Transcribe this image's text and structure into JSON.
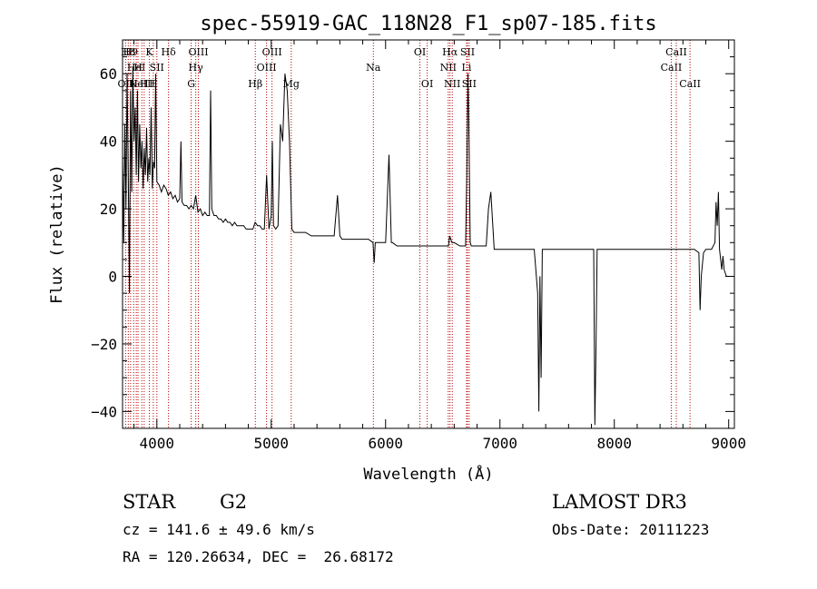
{
  "chart_data": {
    "type": "line",
    "title": "spec-55919-GAC_118N28_F1_sp07-185.fits",
    "xlabel": "Wavelength (Å)",
    "ylabel": "Flux (relative)",
    "xlim": [
      3700,
      9050
    ],
    "ylim": [
      -45,
      70
    ],
    "xticks": [
      4000,
      5000,
      6000,
      7000,
      8000,
      9000
    ],
    "yticks": [
      -40,
      -20,
      0,
      20,
      40,
      60
    ],
    "xtick_labels": [
      "4000",
      "5000",
      "6000",
      "7000",
      "8000",
      "9000"
    ],
    "ytick_labels": [
      "−40",
      "−20",
      "0",
      "20",
      "40",
      "60"
    ],
    "grid": false,
    "series": [
      {
        "values_description": "spectrum",
        "x": [
          3700,
          3710,
          3720,
          3730,
          3740,
          3750,
          3760,
          3770,
          3780,
          3790,
          3800,
          3810,
          3820,
          3830,
          3840,
          3850,
          3860,
          3870,
          3880,
          3890,
          3900,
          3910,
          3920,
          3930,
          3940,
          3950,
          3960,
          3970,
          3980,
          3990,
          4000,
          4020,
          4040,
          4060,
          4080,
          4100,
          4120,
          4140,
          4160,
          4180,
          4200,
          4210,
          4220,
          4240,
          4260,
          4280,
          4300,
          4320,
          4340,
          4360,
          4380,
          4400,
          4420,
          4440,
          4460,
          4470,
          4480,
          4490,
          4500,
          4520,
          4540,
          4560,
          4580,
          4600,
          4620,
          4640,
          4660,
          4680,
          4700,
          4720,
          4740,
          4760,
          4780,
          4800,
          4820,
          4840,
          4860,
          4880,
          4900,
          4920,
          4940,
          4960,
          4980,
          5000,
          5010,
          5020,
          5040,
          5060,
          5080,
          5100,
          5120,
          5140,
          5160,
          5180,
          5200,
          5250,
          5300,
          5350,
          5400,
          5450,
          5500,
          5550,
          5580,
          5600,
          5620,
          5650,
          5700,
          5750,
          5800,
          5850,
          5890,
          5900,
          5910,
          5950,
          6000,
          6030,
          6050,
          6060,
          6100,
          6150,
          6200,
          6250,
          6300,
          6350,
          6400,
          6450,
          6500,
          6550,
          6560,
          6580,
          6600,
          6650,
          6700,
          6710,
          6720,
          6730,
          6740,
          6750,
          6800,
          6850,
          6880,
          6900,
          6920,
          6950,
          7000,
          7050,
          7100,
          7150,
          7200,
          7250,
          7300,
          7330,
          7340,
          7350,
          7360,
          7370,
          7380,
          7400,
          7450,
          7500,
          7550,
          7600,
          7650,
          7700,
          7750,
          7800,
          7820,
          7830,
          7840,
          7850,
          7860,
          7900,
          7950,
          8000,
          8050,
          8100,
          8150,
          8200,
          8250,
          8300,
          8350,
          8400,
          8450,
          8500,
          8550,
          8600,
          8650,
          8700,
          8740,
          8750,
          8760,
          8780,
          8800,
          8850,
          8880,
          8890,
          8900,
          8910,
          8920,
          8940,
          8950,
          8960,
          8980,
          9000
        ],
        "y": [
          35,
          10,
          45,
          20,
          60,
          30,
          -5,
          55,
          25,
          62,
          40,
          50,
          30,
          55,
          28,
          45,
          32,
          40,
          26,
          38,
          30,
          44,
          28,
          35,
          30,
          50,
          26,
          34,
          32,
          60,
          28,
          27,
          25,
          27,
          26,
          24,
          25,
          23,
          24,
          22,
          23,
          40,
          22,
          21,
          21,
          20,
          21,
          20,
          24,
          19,
          20,
          18,
          19,
          18,
          18,
          55,
          20,
          19,
          18,
          18,
          17,
          17,
          16,
          17,
          16,
          16,
          15,
          16,
          15,
          15,
          15,
          15,
          14,
          14,
          14,
          14,
          16,
          15,
          15,
          14,
          14,
          30,
          14,
          18,
          40,
          15,
          14,
          15,
          45,
          40,
          60,
          55,
          40,
          14,
          13,
          13,
          13,
          12,
          12,
          12,
          12,
          12,
          24,
          12,
          11,
          11,
          11,
          11,
          11,
          11,
          10,
          4,
          10,
          10,
          10,
          36,
          10,
          10,
          9,
          9,
          9,
          9,
          9,
          9,
          9,
          9,
          9,
          9,
          12,
          10,
          10,
          9,
          9,
          30,
          60,
          40,
          10,
          9,
          9,
          9,
          9,
          20,
          25,
          8,
          8,
          8,
          8,
          8,
          8,
          8,
          8,
          -5,
          -40,
          0,
          -30,
          8,
          8,
          8,
          8,
          8,
          8,
          8,
          8,
          8,
          8,
          8,
          8,
          -44,
          -20,
          8,
          8,
          8,
          8,
          8,
          8,
          8,
          8,
          8,
          8,
          8,
          8,
          8,
          8,
          8,
          8,
          8,
          8,
          8,
          7,
          -10,
          0,
          7,
          8,
          8,
          10,
          22,
          15,
          25,
          8,
          2,
          6,
          2,
          0,
          0
        ]
      }
    ],
    "lines": [
      {
        "x": 3727,
        "label": "OII",
        "row": 3
      },
      {
        "x": 3750,
        "label": "H8",
        "row": 1
      },
      {
        "x": 3770,
        "label": "H9",
        "row": 1
      },
      {
        "x": 3797,
        "label": "H",
        "row": 3
      },
      {
        "x": 3820,
        "label": "HeI",
        "row": 2
      },
      {
        "x": 3835,
        "label": "H",
        "row": 2
      },
      {
        "x": 3869,
        "label": "NeIII",
        "row": 3
      },
      {
        "x": 3889,
        "label": "H",
        "row": 3
      },
      {
        "x": 3934,
        "label": "K",
        "row": 1
      },
      {
        "x": 3969,
        "label": "H",
        "row": 3
      },
      {
        "x": 4000,
        "label": "SII",
        "row": 2
      },
      {
        "x": 4102,
        "label": "Hδ",
        "row": 1
      },
      {
        "x": 4300,
        "label": "G",
        "row": 3
      },
      {
        "x": 4340,
        "label": "Hγ",
        "row": 2
      },
      {
        "x": 4363,
        "label": "OIII",
        "row": 1
      },
      {
        "x": 4861,
        "label": "Hβ",
        "row": 3
      },
      {
        "x": 4959,
        "label": "OIII",
        "row": 2
      },
      {
        "x": 5007,
        "label": "OIII",
        "row": 1
      },
      {
        "x": 5175,
        "label": "Mg",
        "row": 3
      },
      {
        "x": 5893,
        "label": "Na",
        "row": 2
      },
      {
        "x": 6300,
        "label": "OI",
        "row": 1
      },
      {
        "x": 6364,
        "label": "OI",
        "row": 3
      },
      {
        "x": 6548,
        "label": "NII",
        "row": 2
      },
      {
        "x": 6563,
        "label": "Hα",
        "row": 1
      },
      {
        "x": 6583,
        "label": "NII",
        "row": 3
      },
      {
        "x": 6708,
        "label": "Li",
        "row": 2
      },
      {
        "x": 6716,
        "label": "SII",
        "row": 1
      },
      {
        "x": 6731,
        "label": "SII",
        "row": 3
      },
      {
        "x": 8498,
        "label": "CaII",
        "row": 2
      },
      {
        "x": 8542,
        "label": "CaII",
        "row": 1
      },
      {
        "x": 8662,
        "label": "CaII",
        "row": 3
      }
    ]
  },
  "info": {
    "class": "STAR",
    "subclass": "G2",
    "survey": "LAMOST DR3",
    "cz": "cz = 141.6 ± 49.6 km/s",
    "obs_date": "Obs-Date: 20111223",
    "coords": "RA = 120.26634, DEC =  26.68172"
  },
  "colors": {
    "line": "#000000",
    "marker": "#b40000"
  }
}
